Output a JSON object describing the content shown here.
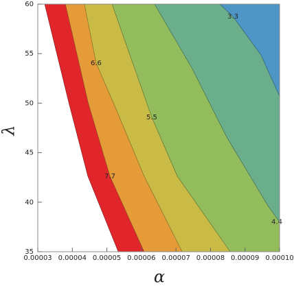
{
  "chart_data": {
    "type": "contour",
    "x_label": "α",
    "y_label": "λ",
    "xlim": [
      3e-05,
      0.0001
    ],
    "ylim": [
      35,
      60
    ],
    "xticks": [
      3e-05,
      4e-05,
      5e-05,
      6e-05,
      7e-05,
      8e-05,
      9e-05,
      {
        "value": 0.0001,
        "label": "0.00010"
      }
    ],
    "yticks": [
      35,
      40,
      45,
      50,
      55,
      60
    ],
    "background": "#ffffff",
    "contours": [
      {
        "fill": "#e1262b",
        "x": [
          3.2e-05,
          3.9e-05,
          4.45e-05,
          5.33e-05
        ],
        "y": [
          60,
          50.03,
          42.62,
          35
        ]
      },
      {
        "level": 7.7,
        "fill": "#e59b37",
        "x": [
          3.8e-05,
          4.46e-05,
          5.09e-05,
          6.08e-05
        ],
        "y": [
          60,
          50.03,
          42.62,
          35
        ]
      },
      {
        "level": 6.6,
        "fill": "#c9bb46",
        "x": [
          4.35e-05,
          4.69e-05,
          5.19e-05,
          6.08e-05,
          7.18e-05
        ],
        "y": [
          60,
          54.04,
          50.03,
          42.62,
          35
        ]
      },
      {
        "level": 5.5,
        "fill": "#93bc5c",
        "x": [
          5.15e-05,
          6.3e-05,
          7.04e-05,
          8.57e-05
        ],
        "y": [
          60,
          48.57,
          42.62,
          35
        ]
      },
      {
        "level": 4.4,
        "fill": "#6aae8c",
        "x": [
          6.38e-05,
          7.47e-05,
          8.47e-05,
          9.66e-05,
          0.0001
        ],
        "y": [
          60,
          53.49,
          46.57,
          39.65,
          38.0
        ]
      },
      {
        "level": 3.3,
        "fill": "#4e96c5",
        "x": [
          8.27e-05,
          8.65e-05,
          9.46e-05,
          0.0001
        ],
        "y": [
          60,
          58.75,
          54.88,
          50.7
        ]
      }
    ]
  }
}
